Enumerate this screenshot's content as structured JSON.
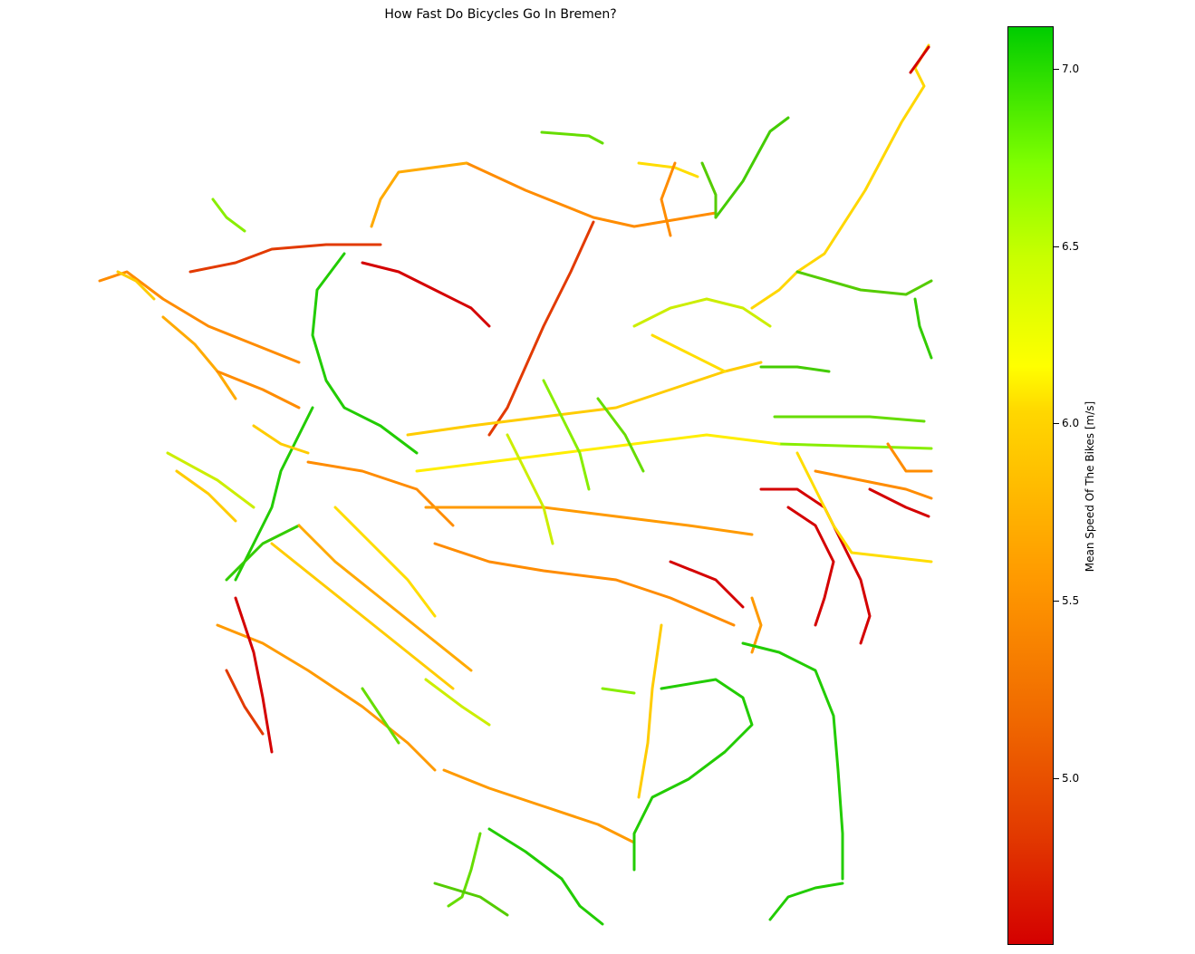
{
  "chart_data": {
    "type": "heatmap",
    "title": "How Fast Do Bicycles Go In Bremen?",
    "colorbar": {
      "label": "Mean Speed Of The Bikes [m/s]",
      "range": [
        4.53,
        7.12
      ],
      "ticks": [
        "5.0",
        "5.5",
        "6.0",
        "6.5",
        "7.0"
      ],
      "colormap": [
        "#d40000",
        "#ff9a00",
        "#ffff00",
        "#80ff00",
        "#00cc00"
      ]
    },
    "axes_visible": false
  }
}
